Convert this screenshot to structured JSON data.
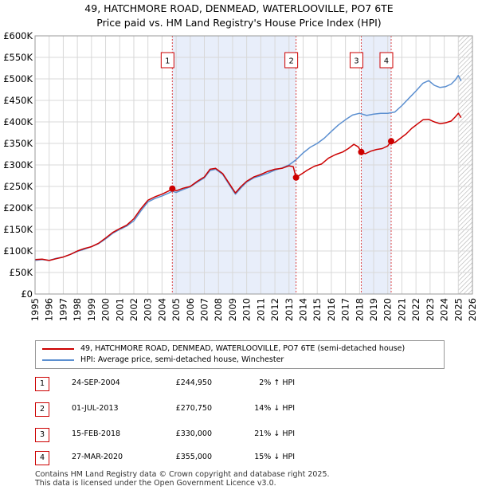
{
  "header": {
    "title_line1": "49, HATCHMORE ROAD, DENMEAD, WATERLOOVILLE, PO7 6TE",
    "title_line2": "Price paid vs. HM Land Registry's House Price Index (HPI)"
  },
  "chart_data": {
    "type": "line",
    "x_range": [
      1995,
      2026
    ],
    "y_range": [
      0,
      600000
    ],
    "x_ticks": [
      "1995",
      "1996",
      "1997",
      "1998",
      "1999",
      "2000",
      "2001",
      "2002",
      "2003",
      "2004",
      "2005",
      "2006",
      "2007",
      "2008",
      "2009",
      "2010",
      "2011",
      "2012",
      "2013",
      "2014",
      "2015",
      "2016",
      "2017",
      "2018",
      "2019",
      "2020",
      "2021",
      "2022",
      "2023",
      "2024",
      "2025",
      "2026"
    ],
    "y_ticks": [
      {
        "value": 0,
        "label": "£0"
      },
      {
        "value": 50000,
        "label": "£50K"
      },
      {
        "value": 100000,
        "label": "£100K"
      },
      {
        "value": 150000,
        "label": "£150K"
      },
      {
        "value": 200000,
        "label": "£200K"
      },
      {
        "value": 250000,
        "label": "£250K"
      },
      {
        "value": 300000,
        "label": "£300K"
      },
      {
        "value": 350000,
        "label": "£350K"
      },
      {
        "value": 400000,
        "label": "£400K"
      },
      {
        "value": 450000,
        "label": "£450K"
      },
      {
        "value": 500000,
        "label": "£500K"
      },
      {
        "value": 550000,
        "label": "£550K"
      },
      {
        "value": 600000,
        "label": "£600K"
      }
    ],
    "series": [
      {
        "name": "49, HATCHMORE ROAD, DENMEAD, WATERLOOVILLE, PO7 6TE (semi-detached house)",
        "color": "#cc0000",
        "points": [
          [
            1995.0,
            80000
          ],
          [
            1995.5,
            81000
          ],
          [
            1996.0,
            78000
          ],
          [
            1996.5,
            82000
          ],
          [
            1997.0,
            86000
          ],
          [
            1997.5,
            92000
          ],
          [
            1998.0,
            100000
          ],
          [
            1998.5,
            106000
          ],
          [
            1999.0,
            110000
          ],
          [
            1999.5,
            118000
          ],
          [
            2000.0,
            130000
          ],
          [
            2000.5,
            143000
          ],
          [
            2001.0,
            152000
          ],
          [
            2001.5,
            160000
          ],
          [
            2002.0,
            175000
          ],
          [
            2002.5,
            198000
          ],
          [
            2003.0,
            218000
          ],
          [
            2003.5,
            226000
          ],
          [
            2004.0,
            232000
          ],
          [
            2004.5,
            240000
          ],
          [
            2004.73,
            244950
          ],
          [
            2005.0,
            240000
          ],
          [
            2005.5,
            246000
          ],
          [
            2006.0,
            250000
          ],
          [
            2006.5,
            262000
          ],
          [
            2007.0,
            272000
          ],
          [
            2007.4,
            290000
          ],
          [
            2007.8,
            292000
          ],
          [
            2008.3,
            280000
          ],
          [
            2008.8,
            255000
          ],
          [
            2009.2,
            235000
          ],
          [
            2009.6,
            250000
          ],
          [
            2010.0,
            262000
          ],
          [
            2010.5,
            272000
          ],
          [
            2011.0,
            278000
          ],
          [
            2011.5,
            285000
          ],
          [
            2012.0,
            290000
          ],
          [
            2012.5,
            292000
          ],
          [
            2013.0,
            298000
          ],
          [
            2013.3,
            296000
          ],
          [
            2013.5,
            270750
          ],
          [
            2013.9,
            279000
          ],
          [
            2014.3,
            288000
          ],
          [
            2014.8,
            297000
          ],
          [
            2015.3,
            302000
          ],
          [
            2015.8,
            316000
          ],
          [
            2016.3,
            324000
          ],
          [
            2016.8,
            330000
          ],
          [
            2017.2,
            338000
          ],
          [
            2017.6,
            348000
          ],
          [
            2017.9,
            342000
          ],
          [
            2018.12,
            330000
          ],
          [
            2018.4,
            326000
          ],
          [
            2018.8,
            332000
          ],
          [
            2019.2,
            336000
          ],
          [
            2019.6,
            338000
          ],
          [
            2020.0,
            344000
          ],
          [
            2020.24,
            355000
          ],
          [
            2020.5,
            352000
          ],
          [
            2020.9,
            362000
          ],
          [
            2021.3,
            372000
          ],
          [
            2021.7,
            385000
          ],
          [
            2022.1,
            395000
          ],
          [
            2022.5,
            405000
          ],
          [
            2022.9,
            406000
          ],
          [
            2023.3,
            400000
          ],
          [
            2023.7,
            396000
          ],
          [
            2024.1,
            398000
          ],
          [
            2024.5,
            402000
          ],
          [
            2024.8,
            412000
          ],
          [
            2025.0,
            420000
          ],
          [
            2025.2,
            410000
          ]
        ]
      },
      {
        "name": "HPI: Average price, semi-detached house, Winchester",
        "color": "#5b8fd0",
        "points": [
          [
            1995.0,
            78000
          ],
          [
            1995.5,
            80000
          ],
          [
            1996.0,
            78000
          ],
          [
            1996.5,
            83000
          ],
          [
            1997.0,
            86000
          ],
          [
            1997.5,
            92000
          ],
          [
            1998.0,
            99000
          ],
          [
            1998.5,
            104000
          ],
          [
            1999.0,
            110000
          ],
          [
            1999.5,
            117000
          ],
          [
            2000.0,
            128000
          ],
          [
            2000.5,
            141000
          ],
          [
            2001.0,
            150000
          ],
          [
            2001.5,
            158000
          ],
          [
            2002.0,
            170000
          ],
          [
            2002.5,
            193000
          ],
          [
            2003.0,
            214000
          ],
          [
            2003.5,
            222000
          ],
          [
            2004.0,
            228000
          ],
          [
            2004.5,
            235000
          ],
          [
            2004.73,
            239000
          ],
          [
            2005.0,
            236000
          ],
          [
            2005.5,
            243000
          ],
          [
            2006.0,
            249000
          ],
          [
            2006.5,
            260000
          ],
          [
            2007.0,
            270000
          ],
          [
            2007.4,
            287000
          ],
          [
            2007.8,
            290000
          ],
          [
            2008.3,
            278000
          ],
          [
            2008.8,
            252000
          ],
          [
            2009.2,
            232000
          ],
          [
            2009.6,
            247000
          ],
          [
            2010.0,
            260000
          ],
          [
            2010.5,
            270000
          ],
          [
            2011.0,
            275000
          ],
          [
            2011.5,
            281000
          ],
          [
            2012.0,
            288000
          ],
          [
            2012.5,
            293000
          ],
          [
            2013.0,
            300000
          ],
          [
            2013.5,
            312000
          ],
          [
            2014.0,
            328000
          ],
          [
            2014.5,
            341000
          ],
          [
            2015.0,
            350000
          ],
          [
            2015.5,
            362000
          ],
          [
            2016.0,
            378000
          ],
          [
            2016.5,
            393000
          ],
          [
            2017.0,
            405000
          ],
          [
            2017.5,
            416000
          ],
          [
            2018.0,
            420000
          ],
          [
            2018.5,
            415000
          ],
          [
            2019.0,
            418000
          ],
          [
            2019.5,
            420000
          ],
          [
            2020.0,
            420000
          ],
          [
            2020.5,
            423000
          ],
          [
            2021.0,
            438000
          ],
          [
            2021.5,
            455000
          ],
          [
            2022.0,
            472000
          ],
          [
            2022.5,
            490000
          ],
          [
            2022.9,
            496000
          ],
          [
            2023.3,
            485000
          ],
          [
            2023.7,
            480000
          ],
          [
            2024.1,
            482000
          ],
          [
            2024.5,
            488000
          ],
          [
            2024.8,
            498000
          ],
          [
            2025.0,
            508000
          ],
          [
            2025.2,
            495000
          ]
        ]
      }
    ],
    "transactions": [
      {
        "num": "1",
        "x": 2004.73,
        "y": 244950,
        "date": "24-SEP-2004",
        "price": "£244,950",
        "hpi": "2% ↑ HPI"
      },
      {
        "num": "2",
        "x": 2013.5,
        "y": 270750,
        "date": "01-JUL-2013",
        "price": "£270,750",
        "hpi": "14% ↓ HPI"
      },
      {
        "num": "3",
        "x": 2018.12,
        "y": 330000,
        "date": "15-FEB-2018",
        "price": "£330,000",
        "hpi": "21% ↓ HPI"
      },
      {
        "num": "4",
        "x": 2020.24,
        "y": 355000,
        "date": "27-MAR-2020",
        "price": "£355,000",
        "hpi": "15% ↓ HPI"
      }
    ],
    "shaded_spans": [
      [
        2004.73,
        2013.5
      ],
      [
        2018.12,
        2020.24
      ]
    ],
    "hatched_from": 2025.0,
    "grid": true
  },
  "legend": {
    "items": [
      {
        "label": "49, HATCHMORE ROAD, DENMEAD, WATERLOOVILLE, PO7 6TE (semi-detached house)",
        "color": "#cc0000"
      },
      {
        "label": "HPI: Average price, semi-detached house, Winchester",
        "color": "#5b8fd0"
      }
    ]
  },
  "footer": {
    "line1": "Contains HM Land Registry data © Crown copyright and database right 2025.",
    "line2": "This data is licensed under the Open Government Licence v3.0."
  }
}
